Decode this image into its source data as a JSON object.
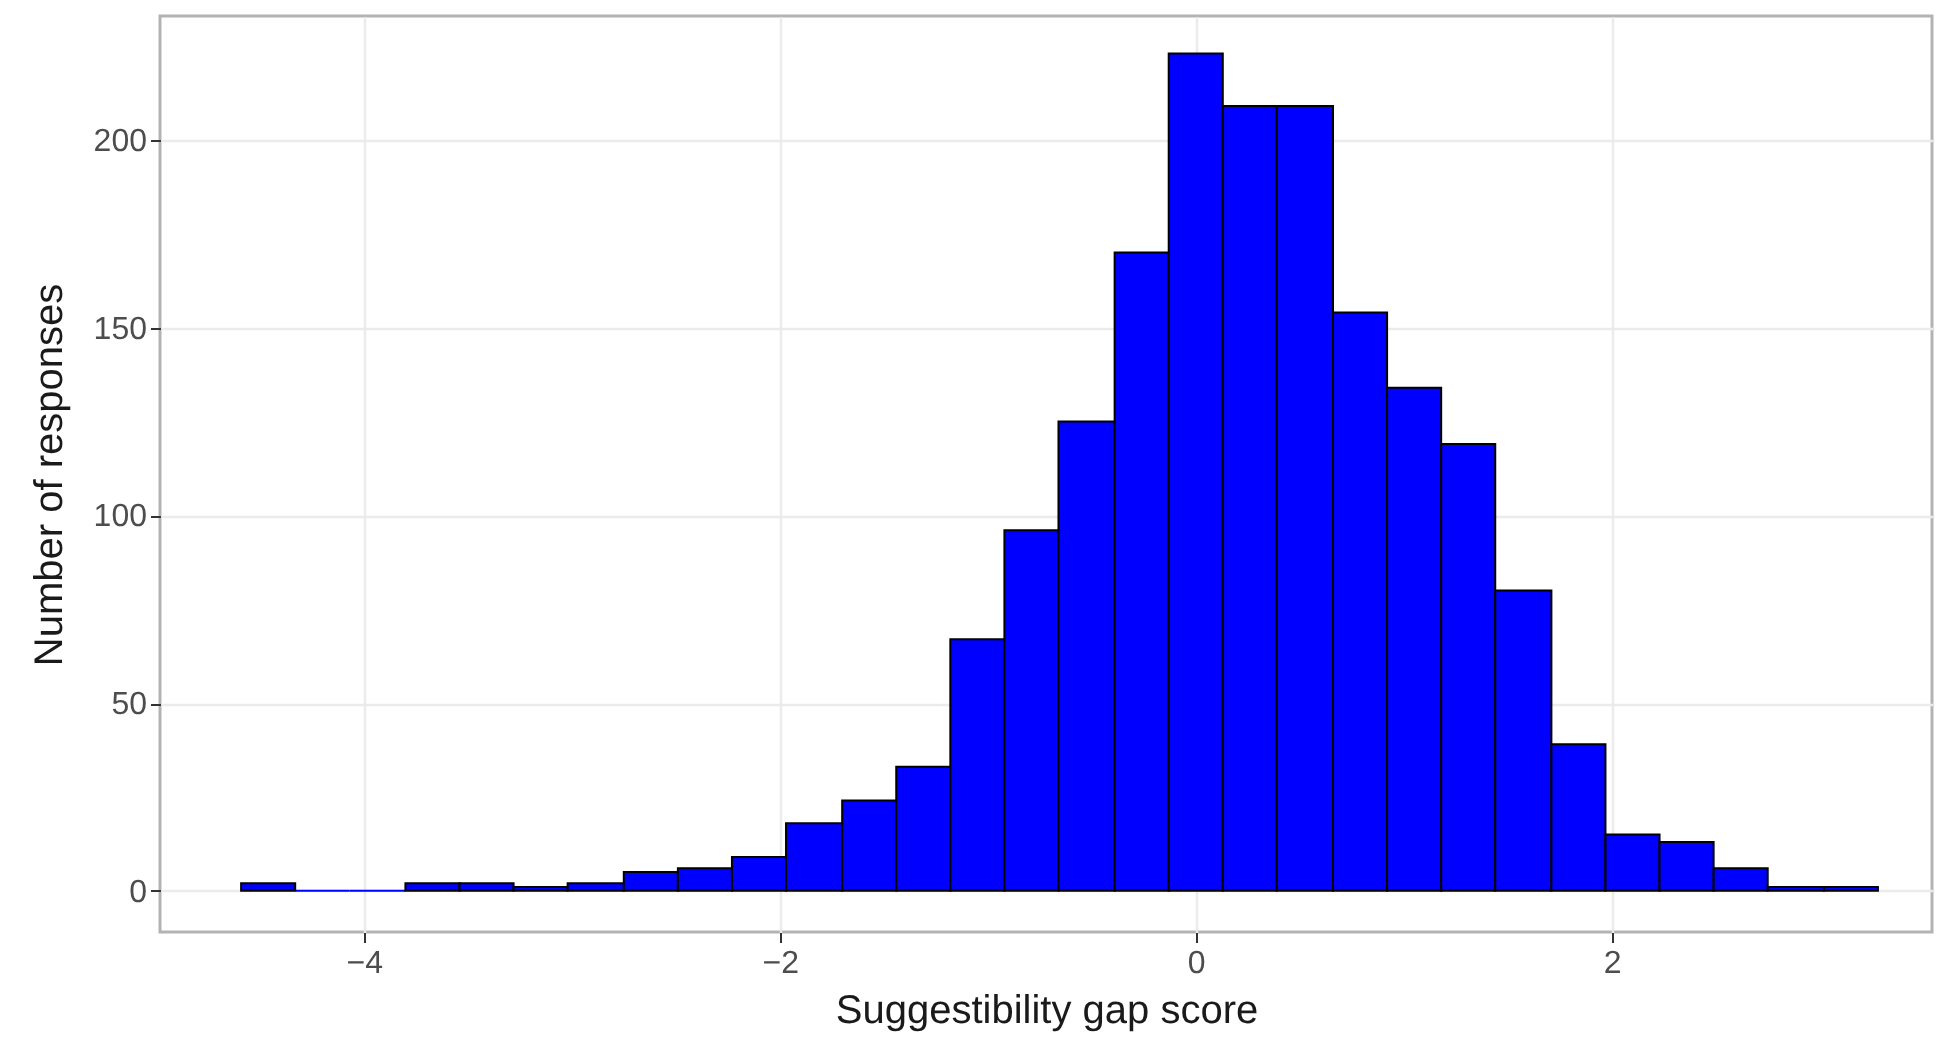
{
  "chart_data": {
    "type": "histogram",
    "xlabel": "Suggestibility gap score",
    "ylabel": "Number of responses",
    "bins": [
      -4.59,
      -4.33,
      -4.07,
      -3.8,
      -3.54,
      -3.28,
      -3.02,
      -2.75,
      -2.49,
      -2.23,
      -1.97,
      -1.7,
      -1.44,
      -1.18,
      -0.92,
      -0.66,
      -0.39,
      -0.13,
      0.13,
      0.39,
      0.66,
      0.92,
      1.18,
      1.44,
      1.71,
      1.97,
      2.23,
      2.49,
      2.75,
      3.02,
      3.28
    ],
    "values": [
      2,
      0,
      0,
      2,
      2,
      1,
      2,
      5,
      6,
      9,
      18,
      24,
      33,
      67,
      96,
      125,
      170,
      223,
      209,
      209,
      154,
      134,
      119,
      80,
      39,
      15,
      13,
      6,
      1,
      1
    ],
    "color": "#0000ff",
    "xlim": [
      -4.98,
      3.54
    ],
    "xticks": [
      -4,
      -2,
      0,
      2
    ],
    "ylim": [
      -11,
      233
    ],
    "yticks": [
      0,
      50,
      100,
      150,
      200
    ],
    "grid": true
  }
}
